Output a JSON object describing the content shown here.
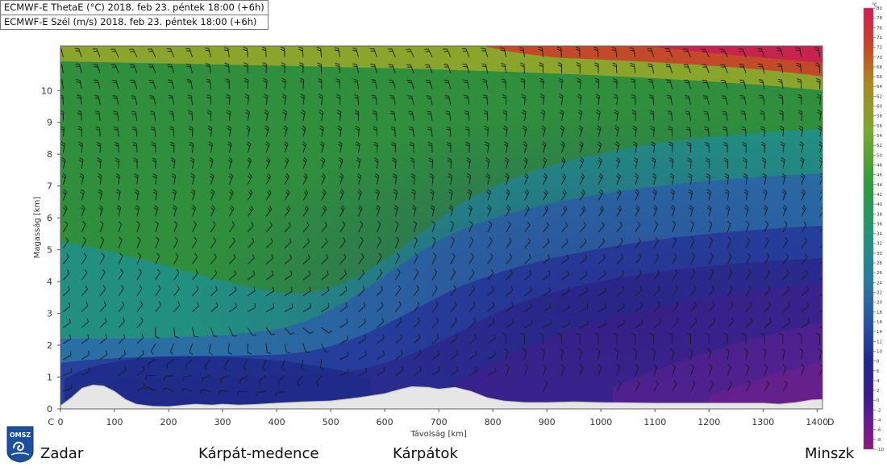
{
  "legend": {
    "line1": "ECMWF-E ThetaE (°C) 2018. feb 23. péntek 18:00 (+6h)",
    "line2": "ECMWF-E Szél (m/s) 2018. feb 23. péntek 18:00 (+6h)"
  },
  "logo": {
    "text": "OMSZ"
  },
  "places": [
    "Zadar",
    "Kárpát-medence",
    "Kárpátok",
    "Minszk"
  ],
  "chart_data": {
    "type": "heatmap",
    "title": "",
    "xlabel": "Távolság [km]",
    "ylabel": "Magasság [km]",
    "xlim": [
      0,
      1410
    ],
    "ylim": [
      0,
      11.4
    ],
    "x_ticks": [
      0,
      100,
      200,
      300,
      400,
      500,
      600,
      700,
      800,
      900,
      1000,
      1100,
      1200,
      1300,
      1400
    ],
    "y_ticks": [
      0,
      1,
      2,
      3,
      4,
      5,
      6,
      7,
      8,
      9,
      10
    ],
    "x_end_labels": {
      "left": "C",
      "right": "D"
    },
    "colorbar": {
      "unit": "°C",
      "ticks": [
        80,
        78,
        76,
        74,
        72,
        70,
        68,
        66,
        64,
        62,
        60,
        58,
        56,
        54,
        52,
        50,
        48,
        46,
        44,
        42,
        40,
        38,
        36,
        34,
        32,
        30,
        28,
        26,
        24,
        22,
        20,
        18,
        16,
        14,
        12,
        10,
        8,
        6,
        4,
        2,
        0,
        -2,
        -4,
        -6,
        -8,
        -10
      ],
      "range": [
        -10,
        80
      ]
    },
    "series": [
      {
        "name": "ThetaE",
        "kind": "filled-field"
      },
      {
        "name": "Szél",
        "kind": "wind-barbs"
      }
    ],
    "terrain_km": [
      [
        0,
        0.1
      ],
      [
        20,
        0.35
      ],
      [
        40,
        0.65
      ],
      [
        60,
        0.75
      ],
      [
        80,
        0.72
      ],
      [
        100,
        0.55
      ],
      [
        120,
        0.3
      ],
      [
        140,
        0.15
      ],
      [
        170,
        0.08
      ],
      [
        200,
        0.07
      ],
      [
        230,
        0.12
      ],
      [
        250,
        0.15
      ],
      [
        280,
        0.12
      ],
      [
        300,
        0.15
      ],
      [
        330,
        0.12
      ],
      [
        360,
        0.14
      ],
      [
        400,
        0.18
      ],
      [
        450,
        0.22
      ],
      [
        500,
        0.25
      ],
      [
        550,
        0.35
      ],
      [
        600,
        0.48
      ],
      [
        630,
        0.62
      ],
      [
        650,
        0.7
      ],
      [
        680,
        0.68
      ],
      [
        700,
        0.62
      ],
      [
        730,
        0.68
      ],
      [
        760,
        0.55
      ],
      [
        790,
        0.35
      ],
      [
        820,
        0.25
      ],
      [
        860,
        0.2
      ],
      [
        900,
        0.2
      ],
      [
        950,
        0.22
      ],
      [
        1000,
        0.2
      ],
      [
        1100,
        0.18
      ],
      [
        1200,
        0.18
      ],
      [
        1300,
        0.18
      ],
      [
        1330,
        0.15
      ],
      [
        1360,
        0.2
      ],
      [
        1390,
        0.28
      ],
      [
        1410,
        0.3
      ]
    ]
  }
}
